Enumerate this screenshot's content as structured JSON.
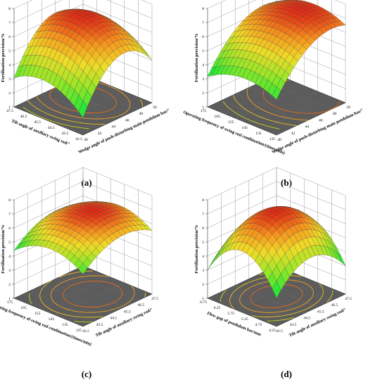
{
  "chart_data": [
    {
      "panel_label": "(a)",
      "type": "surface3d",
      "zlabel": "Fertilization precision/%",
      "xlabel": "Wedge angle of push-disturbing main pendulum bar/°",
      "ylabel": "Tilt angle of auxiliary swing rod/°",
      "zticks": [
        "1",
        "2",
        "3",
        "4",
        "5",
        "6",
        "7",
        "8"
      ],
      "zlim": [
        1,
        8
      ],
      "xticks": [
        "40",
        "42",
        "44",
        "46",
        "48",
        "50"
      ],
      "xlim": [
        40,
        50
      ],
      "yticks": [
        "42.5",
        "43.5",
        "44.5",
        "45.5",
        "46.5",
        "47.5"
      ],
      "ylim": [
        42.5,
        47.5
      ],
      "surface": {
        "center_x": 46,
        "center_y": 45.5,
        "peak": 7.0,
        "ax": 0.09,
        "ay": 0.17
      }
    },
    {
      "panel_label": "(b)",
      "type": "surface3d",
      "zlabel": "Fertilization precision/%",
      "xlabel": "Wedge angle of push-disturbing main pendulum bar/°",
      "ylabel": "Operating frequency of swing rod combination/(times/min)",
      "zticks": [
        "1",
        "2",
        "3",
        "4",
        "5",
        "6",
        "7",
        "8"
      ],
      "zlim": [
        1,
        8
      ],
      "xticks": [
        "40",
        "42",
        "44",
        "46",
        "48",
        "50"
      ],
      "xlim": [
        40,
        50
      ],
      "yticks": [
        "125",
        "135",
        "145",
        "155",
        "165",
        "175"
      ],
      "ylim": [
        125,
        175
      ],
      "surface": {
        "center_x": 48,
        "center_y": 147,
        "peak": 7.3,
        "ax": 0.05,
        "ay": 0.0012
      }
    },
    {
      "panel_label": "(c)",
      "type": "surface3d",
      "zlabel": "Fertilization precision/%",
      "xlabel": "Tilt angle of auxiliary swing rod/°",
      "ylabel": "Operating frequency of swing rod combination/(times/min)",
      "zticks": [
        "1",
        "2",
        "3",
        "4",
        "5",
        "6",
        "7",
        "8"
      ],
      "zlim": [
        1,
        8
      ],
      "xticks": [
        "42.5",
        "43.5",
        "44.5",
        "45.5",
        "46.5",
        "47.5"
      ],
      "xlim": [
        42.5,
        47.5
      ],
      "yticks": [
        "125",
        "135",
        "145",
        "155",
        "165",
        "175"
      ],
      "ylim": [
        125,
        175
      ],
      "surface": {
        "center_x": 45.5,
        "center_y": 148,
        "peak": 7.0,
        "ax": 0.16,
        "ay": 0.0016
      }
    },
    {
      "panel_label": "(d)",
      "type": "surface3d",
      "zlabel": "Fertilization precision/%",
      "xlabel": "Tilt angle of auxiliary swing rod/°",
      "ylabel": "Flow gap of pendulum bar/mm",
      "zticks": [
        "1",
        "2",
        "3",
        "4",
        "5",
        "6",
        "7",
        "8"
      ],
      "zlim": [
        1,
        8
      ],
      "xticks": [
        "42.5",
        "43.5",
        "44.5",
        "45.5",
        "46.5",
        "47.5"
      ],
      "xlim": [
        42.5,
        47.5
      ],
      "yticks": [
        "4.25",
        "4.75",
        "5.25",
        "5.75",
        "6.25",
        "6.75"
      ],
      "ylim": [
        4.25,
        6.75
      ],
      "surface": {
        "center_x": 45.0,
        "center_y": 5.5,
        "peak": 7.1,
        "ax": 0.28,
        "ay": 1.5
      }
    }
  ]
}
